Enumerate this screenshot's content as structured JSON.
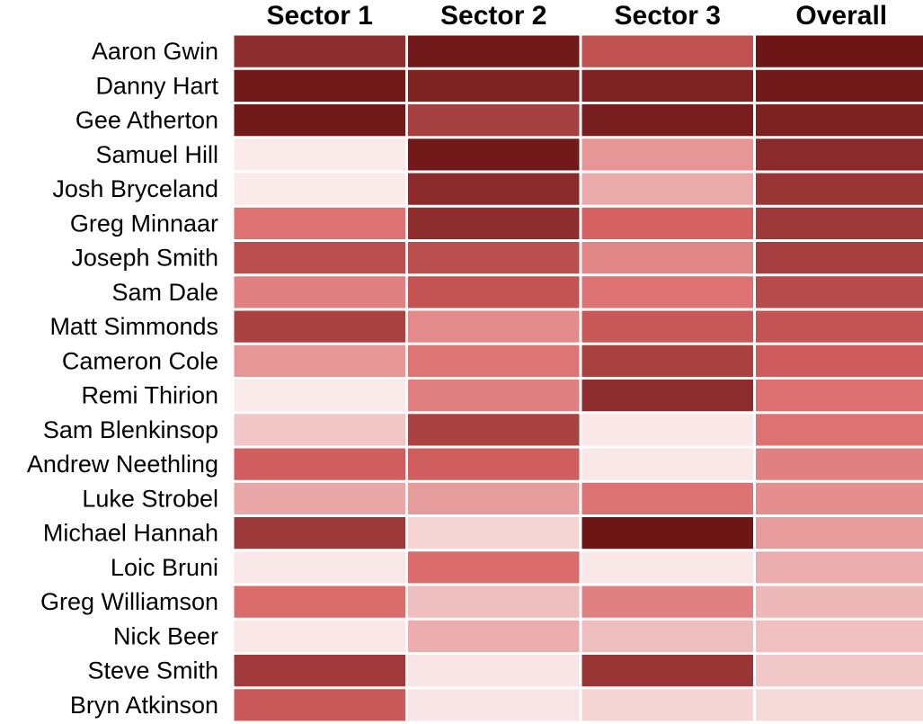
{
  "chart_data": {
    "type": "heatmap",
    "columns": [
      "Sector 1",
      "Sector 2",
      "Sector 3",
      "Overall"
    ],
    "rows": [
      "Aaron Gwin",
      "Danny Hart",
      "Gee Atherton",
      "Samuel Hill",
      "Josh Bryceland",
      "Greg Minnaar",
      "Joseph Smith",
      "Sam Dale",
      "Matt Simmonds",
      "Cameron Cole",
      "Remi Thirion",
      "Sam Blenkinsop",
      "Andrew Neethling",
      "Luke Strobel",
      "Michael Hannah",
      "Loic Bruni",
      "Greg Williamson",
      "Nick Beer",
      "Steve Smith",
      "Bryn Atkinson"
    ],
    "values": [
      [
        0.85,
        0.98,
        0.62,
        1.0
      ],
      [
        0.98,
        0.92,
        0.92,
        0.98
      ],
      [
        0.98,
        0.74,
        0.95,
        0.93
      ],
      [
        0.02,
        0.98,
        0.32,
        0.87
      ],
      [
        0.02,
        0.87,
        0.25,
        0.8
      ],
      [
        0.45,
        0.85,
        0.52,
        0.78
      ],
      [
        0.64,
        0.64,
        0.38,
        0.74
      ],
      [
        0.4,
        0.6,
        0.45,
        0.66
      ],
      [
        0.72,
        0.36,
        0.58,
        0.6
      ],
      [
        0.32,
        0.44,
        0.72,
        0.55
      ],
      [
        0.02,
        0.4,
        0.86,
        0.46
      ],
      [
        0.15,
        0.72,
        0.03,
        0.45
      ],
      [
        0.54,
        0.54,
        0.03,
        0.4
      ],
      [
        0.26,
        0.3,
        0.45,
        0.35
      ],
      [
        0.78,
        0.1,
        1.0,
        0.3
      ],
      [
        0.03,
        0.47,
        0.03,
        0.24
      ],
      [
        0.47,
        0.18,
        0.4,
        0.2
      ],
      [
        0.03,
        0.24,
        0.18,
        0.17
      ],
      [
        0.76,
        0.04,
        0.8,
        0.14
      ],
      [
        0.57,
        0.04,
        0.1,
        0.08
      ]
    ],
    "color_scale": {
      "low": "#fcf0f0",
      "mid": "#d96464",
      "high": "#6e1616"
    },
    "grid": false,
    "legend": "none"
  }
}
